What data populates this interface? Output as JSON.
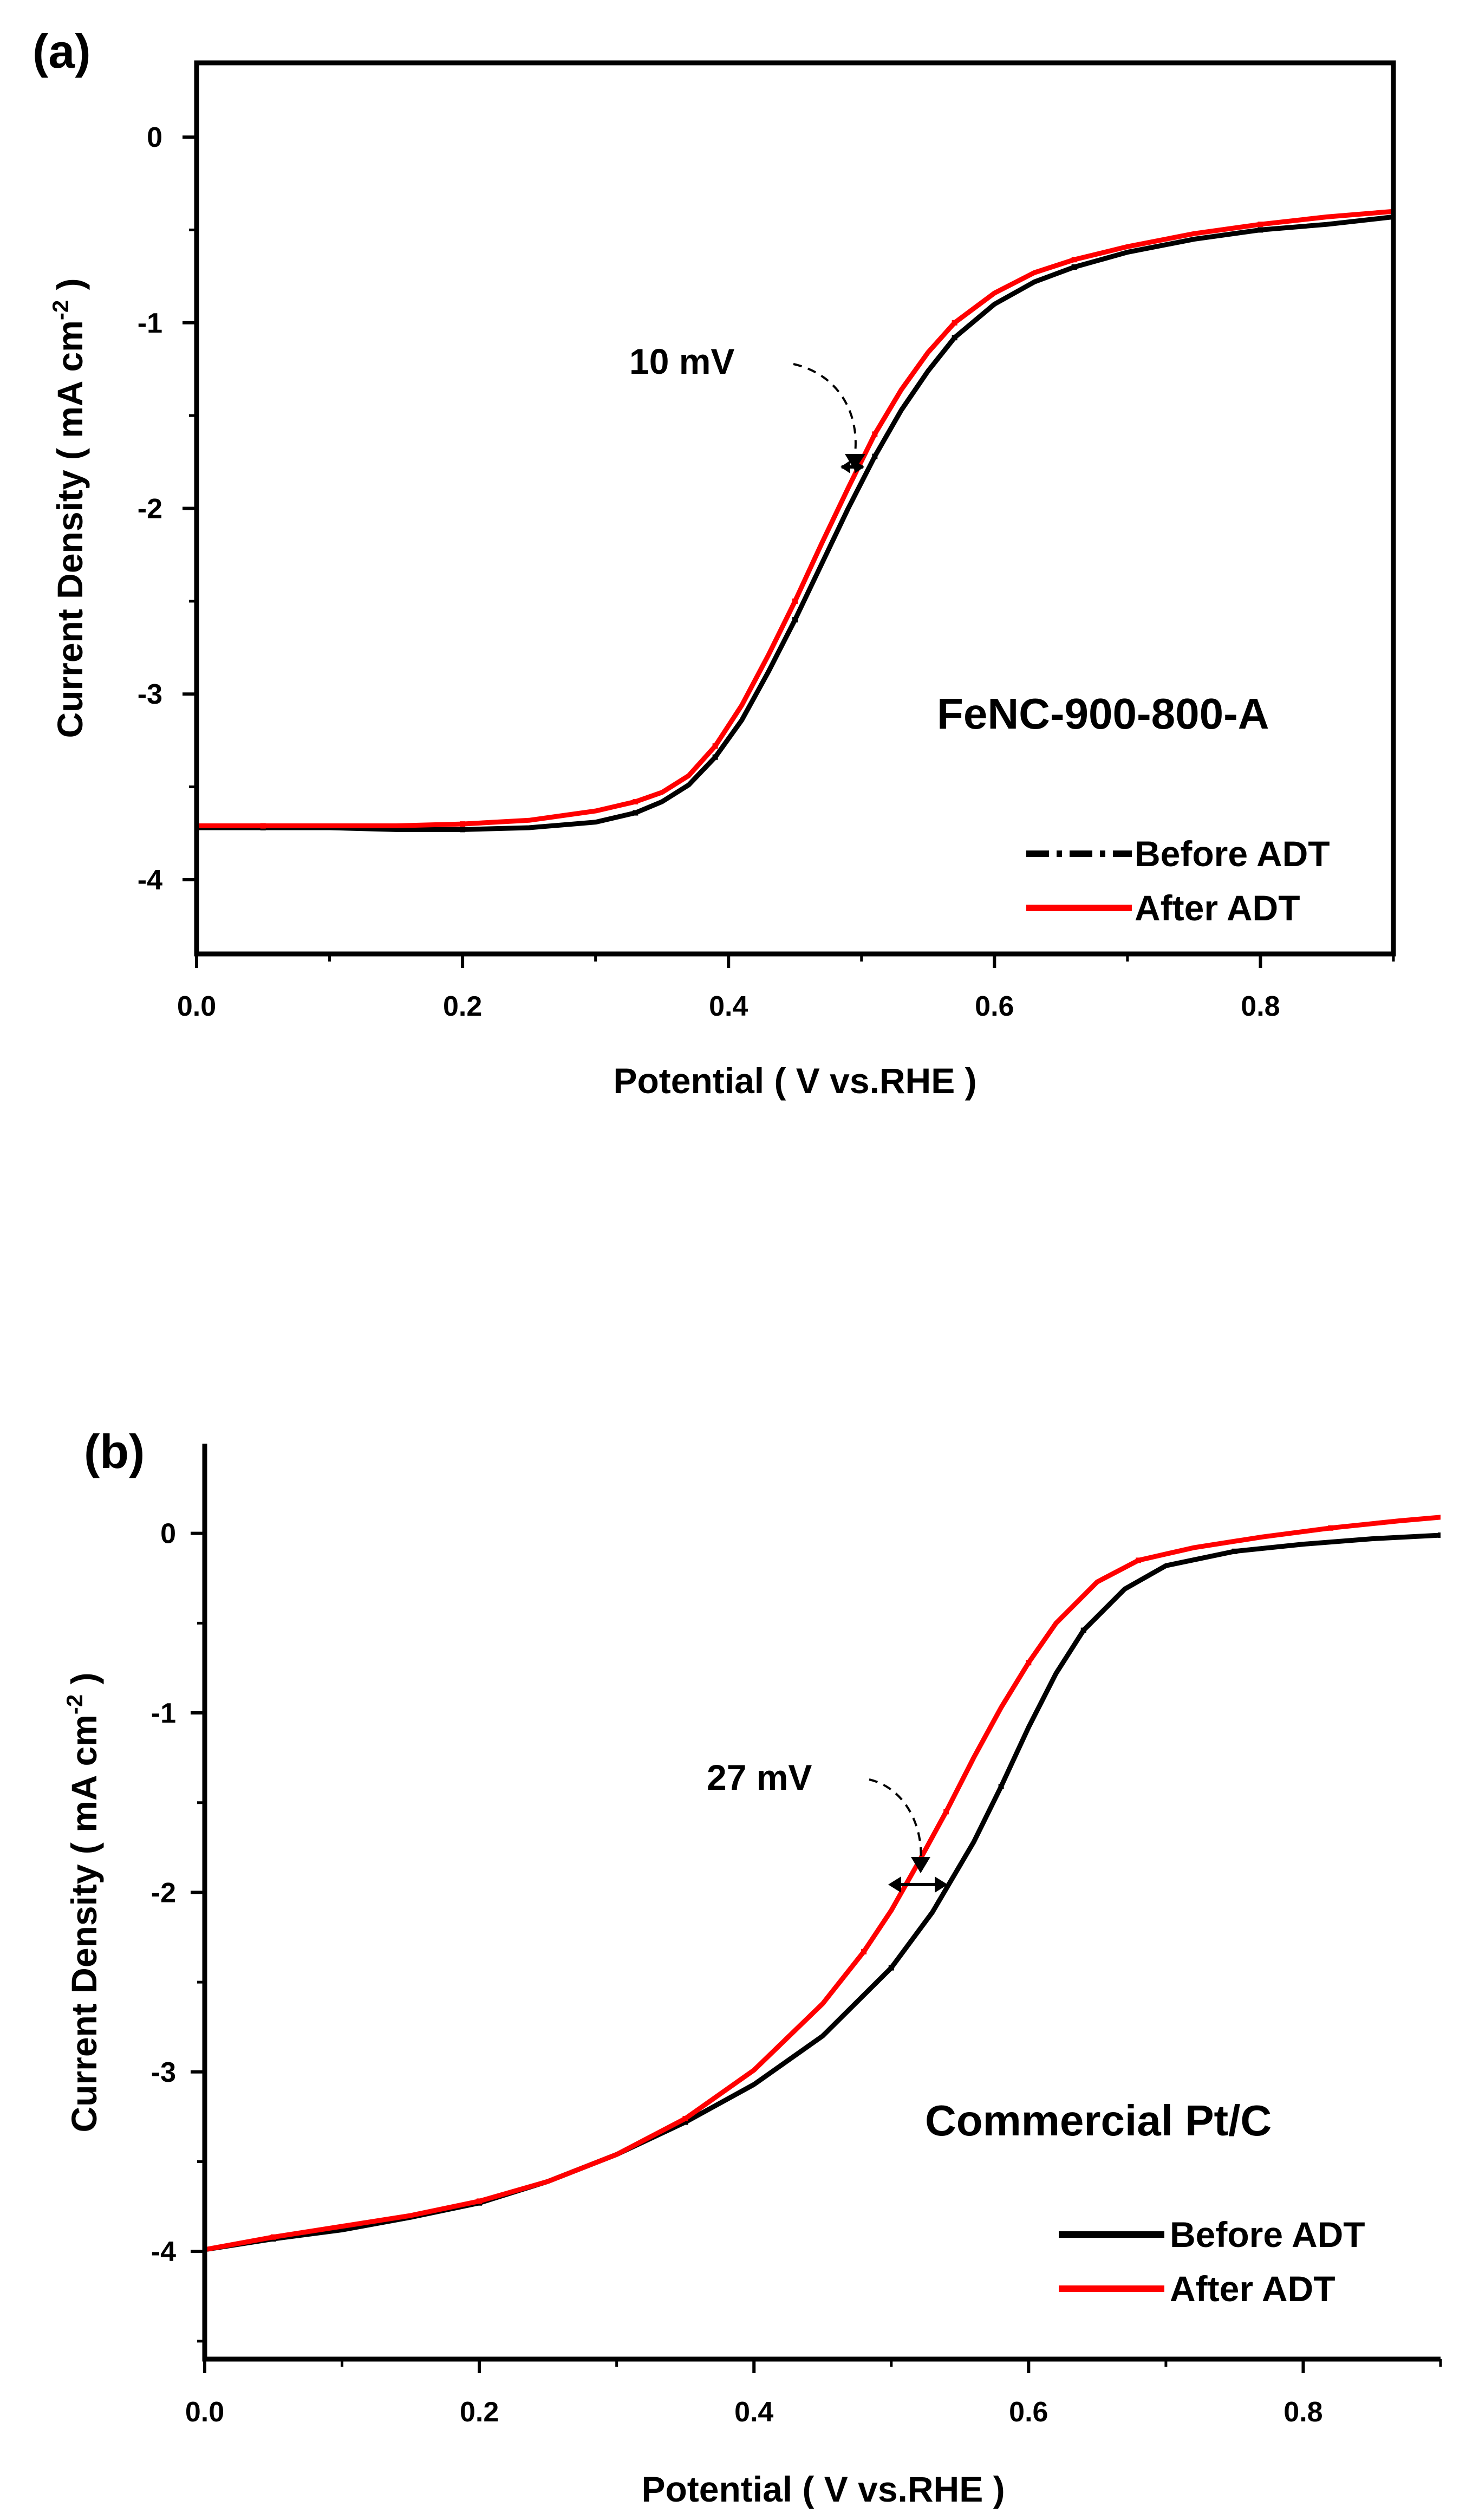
{
  "chart_data": [
    {
      "type": "line",
      "panel_label": "(a)",
      "sample_label": "FeNC-900-800-A",
      "xlabel": "Potential ( V vs.RHE )",
      "ylabel": "Current Density ( mA cm",
      "ylabel_sup": "-2",
      "ylabel_close": " )",
      "xlim": [
        0,
        0.9
      ],
      "ylim": [
        -4.4,
        0.4
      ],
      "xticks": [
        "0.0",
        "0.2",
        "0.4",
        "0.6",
        "0.8"
      ],
      "xtick_values": [
        0,
        0.2,
        0.4,
        0.6,
        0.8
      ],
      "yticks": [
        "0",
        "-1",
        "-2",
        "-3",
        "-4"
      ],
      "ytick_values": [
        0,
        -1,
        -2,
        -3,
        -4
      ],
      "annotation": {
        "text": "10 mV",
        "x": 0.49,
        "y": -1.78
      },
      "legend_position": "bottom-right",
      "series": [
        {
          "name": "Before ADT",
          "color": "#000000",
          "style": "dash-dot",
          "x": [
            0,
            0.05,
            0.1,
            0.15,
            0.2,
            0.25,
            0.3,
            0.33,
            0.35,
            0.37,
            0.39,
            0.41,
            0.43,
            0.45,
            0.47,
            0.49,
            0.51,
            0.53,
            0.55,
            0.57,
            0.6,
            0.63,
            0.66,
            0.7,
            0.75,
            0.8,
            0.85,
            0.9
          ],
          "y": [
            -3.72,
            -3.72,
            -3.72,
            -3.73,
            -3.73,
            -3.72,
            -3.69,
            -3.64,
            -3.58,
            -3.49,
            -3.34,
            -3.14,
            -2.88,
            -2.6,
            -2.3,
            -2.0,
            -1.72,
            -1.47,
            -1.26,
            -1.08,
            -0.9,
            -0.78,
            -0.7,
            -0.62,
            -0.55,
            -0.5,
            -0.47,
            -0.43
          ]
        },
        {
          "name": "After ADT",
          "color": "#ff0000",
          "style": "solid",
          "x": [
            0,
            0.05,
            0.1,
            0.15,
            0.2,
            0.25,
            0.3,
            0.33,
            0.35,
            0.37,
            0.39,
            0.41,
            0.43,
            0.45,
            0.47,
            0.49,
            0.51,
            0.53,
            0.55,
            0.57,
            0.6,
            0.63,
            0.66,
            0.7,
            0.75,
            0.8,
            0.85,
            0.9
          ],
          "y": [
            -3.71,
            -3.71,
            -3.71,
            -3.71,
            -3.7,
            -3.68,
            -3.63,
            -3.58,
            -3.53,
            -3.44,
            -3.28,
            -3.06,
            -2.79,
            -2.5,
            -2.19,
            -1.89,
            -1.6,
            -1.36,
            -1.16,
            -1.0,
            -0.84,
            -0.73,
            -0.66,
            -0.59,
            -0.52,
            -0.47,
            -0.43,
            -0.4
          ]
        }
      ]
    },
    {
      "type": "line",
      "panel_label": "(b)",
      "sample_label": "Commercial Pt/C",
      "xlabel": "Potential ( V vs.RHE )",
      "ylabel": "Current Density ( mA cm",
      "ylabel_sup": "-2",
      "ylabel_close": " )",
      "xlim": [
        0,
        0.9
      ],
      "ylim": [
        -4.6,
        0.5
      ],
      "xticks": [
        "0.0",
        "0.2",
        "0.4",
        "0.6",
        "0.8"
      ],
      "xtick_values": [
        0,
        0.2,
        0.4,
        0.6,
        0.8
      ],
      "yticks": [
        "0",
        "-1",
        "-2",
        "-3",
        "-4"
      ],
      "ytick_values": [
        0,
        -1,
        -2,
        -3,
        -4
      ],
      "annotation": {
        "text": "27 mV",
        "x": 0.525,
        "y": -1.93
      },
      "legend_position": "bottom-right",
      "series": [
        {
          "name": "Before ADT",
          "color": "#000000",
          "style": "solid",
          "x": [
            0,
            0.05,
            0.1,
            0.15,
            0.2,
            0.25,
            0.3,
            0.35,
            0.4,
            0.45,
            0.5,
            0.53,
            0.56,
            0.58,
            0.6,
            0.62,
            0.64,
            0.67,
            0.7,
            0.75,
            0.8,
            0.85,
            0.9
          ],
          "y": [
            -3.99,
            -3.93,
            -3.88,
            -3.81,
            -3.73,
            -3.61,
            -3.46,
            -3.28,
            -3.07,
            -2.8,
            -2.42,
            -2.11,
            -1.72,
            -1.41,
            -1.08,
            -0.78,
            -0.54,
            -0.31,
            -0.18,
            -0.1,
            -0.06,
            -0.03,
            -0.01
          ]
        },
        {
          "name": "After ADT",
          "color": "#ff0000",
          "style": "solid",
          "x": [
            0,
            0.05,
            0.1,
            0.15,
            0.2,
            0.25,
            0.3,
            0.35,
            0.4,
            0.45,
            0.48,
            0.5,
            0.52,
            0.54,
            0.56,
            0.58,
            0.6,
            0.62,
            0.65,
            0.68,
            0.72,
            0.77,
            0.82,
            0.87,
            0.9
          ],
          "y": [
            -3.99,
            -3.92,
            -3.86,
            -3.8,
            -3.72,
            -3.61,
            -3.46,
            -3.26,
            -2.99,
            -2.62,
            -2.33,
            -2.1,
            -1.83,
            -1.55,
            -1.25,
            -0.97,
            -0.72,
            -0.5,
            -0.27,
            -0.15,
            -0.08,
            -0.02,
            0.03,
            0.07,
            0.09
          ]
        }
      ]
    }
  ]
}
